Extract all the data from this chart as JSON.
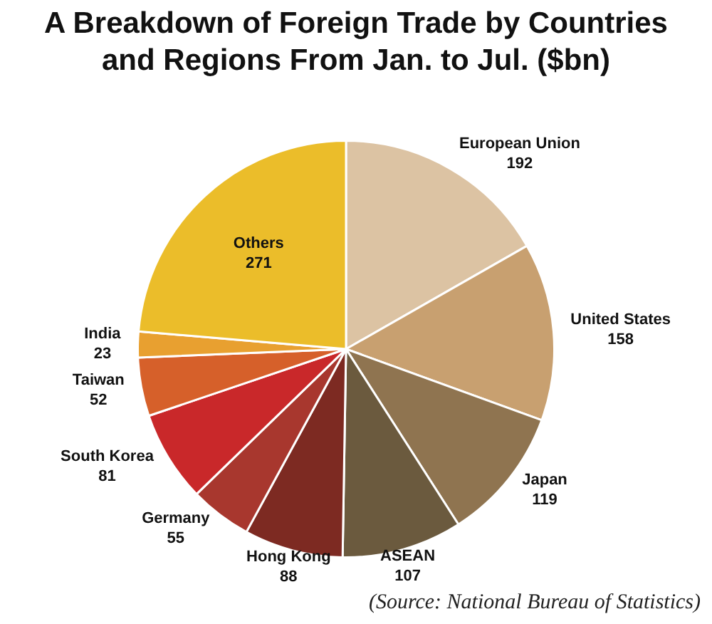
{
  "chart_data": {
    "type": "pie",
    "title": "A Breakdown of Foreign Trade by Countries and Regions From Jan. to Jul. ($bn)",
    "categories": [
      "European Union",
      "United States",
      "Japan",
      "ASEAN",
      "Hong Kong",
      "Germany",
      "South Korea",
      "Taiwan",
      "India",
      "Others"
    ],
    "values": [
      192,
      158,
      119,
      107,
      88,
      55,
      81,
      52,
      23,
      271
    ],
    "colors": [
      "#dcc3a3",
      "#c8a070",
      "#8f7450",
      "#6b5a3e",
      "#7d2a22",
      "#a8372e",
      "#c9282a",
      "#d6602a",
      "#e8a030",
      "#ebbd2a"
    ],
    "data_labels": true,
    "annotations": [
      "(Source: National Bureau of Statistics)"
    ]
  }
}
